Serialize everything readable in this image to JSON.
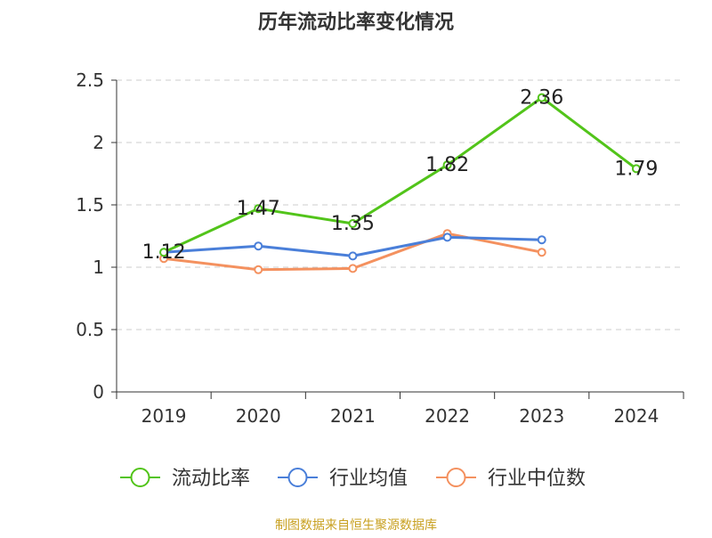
{
  "chart_data": {
    "type": "line",
    "title": "历年流动比率变化情况",
    "categories": [
      "2019",
      "2020",
      "2021",
      "2022",
      "2023",
      "2024"
    ],
    "ylim": [
      0,
      2.5
    ],
    "yticks": [
      "0",
      "0.5",
      "1",
      "1.5",
      "2",
      "2.5"
    ],
    "grid": true,
    "legend_position": "bottom",
    "series": [
      {
        "name": "流动比率",
        "color": "#52c41a",
        "values": [
          1.12,
          1.47,
          1.35,
          1.82,
          2.36,
          1.79
        ],
        "labels": [
          "1.12",
          "1.47",
          "1.35",
          "1.82",
          "2.36",
          "1.79"
        ]
      },
      {
        "name": "行业均值",
        "color": "#4a7fd9",
        "values": [
          1.12,
          1.17,
          1.09,
          1.24,
          1.22,
          null
        ]
      },
      {
        "name": "行业中位数",
        "color": "#f4915f",
        "values": [
          1.07,
          0.98,
          0.99,
          1.27,
          1.12,
          null
        ]
      }
    ],
    "source": "制图数据来自恒生聚源数据库",
    "source_color": "#c8a020"
  }
}
